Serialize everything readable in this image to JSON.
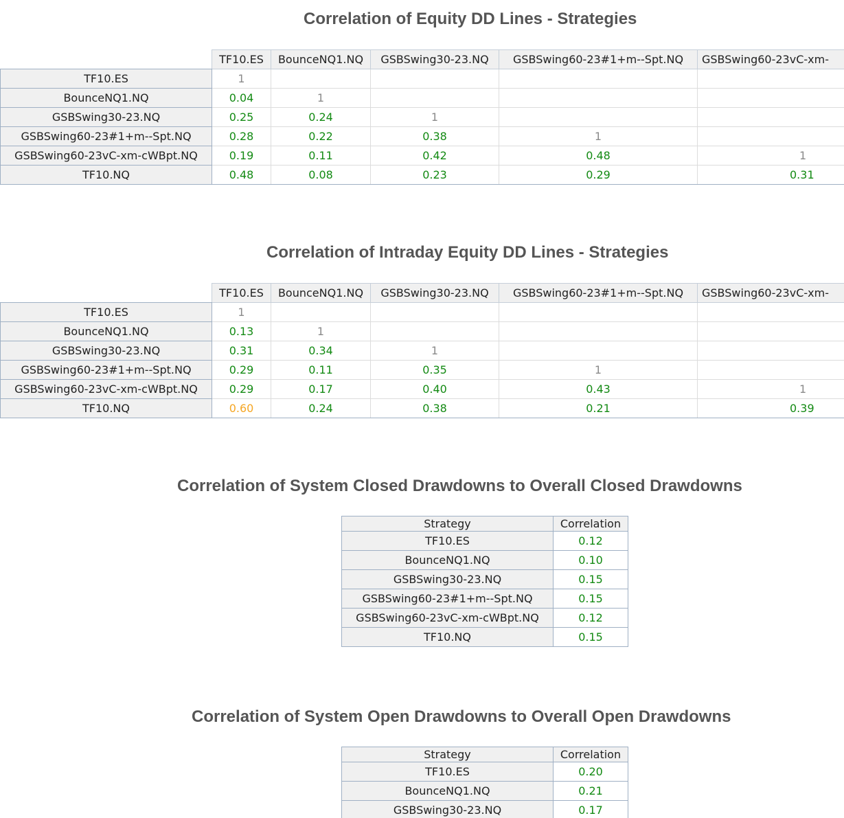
{
  "section1": {
    "title": "Correlation of Equity DD Lines - Strategies",
    "columns": [
      "TF10.ES",
      "BounceNQ1.NQ",
      "GSBSwing30-23.NQ",
      "GSBSwing60-23#1+m--Spt.NQ",
      "GSBSwing60-23vC-xm-"
    ],
    "rows": [
      {
        "label": "TF10.ES",
        "values": [
          "1",
          "",
          "",
          "",
          ""
        ]
      },
      {
        "label": "BounceNQ1.NQ",
        "values": [
          "0.04",
          "1",
          "",
          "",
          ""
        ]
      },
      {
        "label": "GSBSwing30-23.NQ",
        "values": [
          "0.25",
          "0.24",
          "1",
          "",
          ""
        ]
      },
      {
        "label": "GSBSwing60-23#1+m--Spt.NQ",
        "values": [
          "0.28",
          "0.22",
          "0.38",
          "1",
          ""
        ]
      },
      {
        "label": "GSBSwing60-23vC-xm-cWBpt.NQ",
        "values": [
          "0.19",
          "0.11",
          "0.42",
          "0.48",
          "1"
        ]
      },
      {
        "label": "TF10.NQ",
        "values": [
          "0.48",
          "0.08",
          "0.23",
          "0.29",
          "0.31"
        ]
      }
    ]
  },
  "section2": {
    "title": "Correlation of Intraday Equity DD Lines - Strategies",
    "columns": [
      "TF10.ES",
      "BounceNQ1.NQ",
      "GSBSwing30-23.NQ",
      "GSBSwing60-23#1+m--Spt.NQ",
      "GSBSwing60-23vC-xm-"
    ],
    "rows": [
      {
        "label": "TF10.ES",
        "values": [
          "1",
          "",
          "",
          "",
          ""
        ]
      },
      {
        "label": "BounceNQ1.NQ",
        "values": [
          "0.13",
          "1",
          "",
          "",
          ""
        ]
      },
      {
        "label": "GSBSwing30-23.NQ",
        "values": [
          "0.31",
          "0.34",
          "1",
          "",
          ""
        ]
      },
      {
        "label": "GSBSwing60-23#1+m--Spt.NQ",
        "values": [
          "0.29",
          "0.11",
          "0.35",
          "1",
          ""
        ]
      },
      {
        "label": "GSBSwing60-23vC-xm-cWBpt.NQ",
        "values": [
          "0.29",
          "0.17",
          "0.40",
          "0.43",
          "1"
        ]
      },
      {
        "label": "TF10.NQ",
        "values": [
          "0.60",
          "0.24",
          "0.38",
          "0.21",
          "0.39"
        ]
      }
    ]
  },
  "section3": {
    "title": "Correlation of System Closed Drawdowns to Overall Closed Drawdowns",
    "headers": [
      "Strategy",
      "Correlation"
    ],
    "rows": [
      {
        "strategy": "TF10.ES",
        "correlation": "0.12"
      },
      {
        "strategy": "BounceNQ1.NQ",
        "correlation": "0.10"
      },
      {
        "strategy": "GSBSwing30-23.NQ",
        "correlation": "0.15"
      },
      {
        "strategy": "GSBSwing60-23#1+m--Spt.NQ",
        "correlation": "0.15"
      },
      {
        "strategy": "GSBSwing60-23vC-xm-cWBpt.NQ",
        "correlation": "0.12"
      },
      {
        "strategy": "TF10.NQ",
        "correlation": "0.15"
      }
    ]
  },
  "section4": {
    "title": "Correlation of System Open Drawdowns to Overall Open Drawdowns",
    "headers": [
      "Strategy",
      "Correlation"
    ],
    "rows": [
      {
        "strategy": "TF10.ES",
        "correlation": "0.20"
      },
      {
        "strategy": "BounceNQ1.NQ",
        "correlation": "0.21"
      },
      {
        "strategy": "GSBSwing30-23.NQ",
        "correlation": "0.17"
      }
    ]
  },
  "colors": {
    "good": "#138a13",
    "warning": "#f5a623",
    "diagonal": "#8a8a8a",
    "title": "#555555"
  }
}
